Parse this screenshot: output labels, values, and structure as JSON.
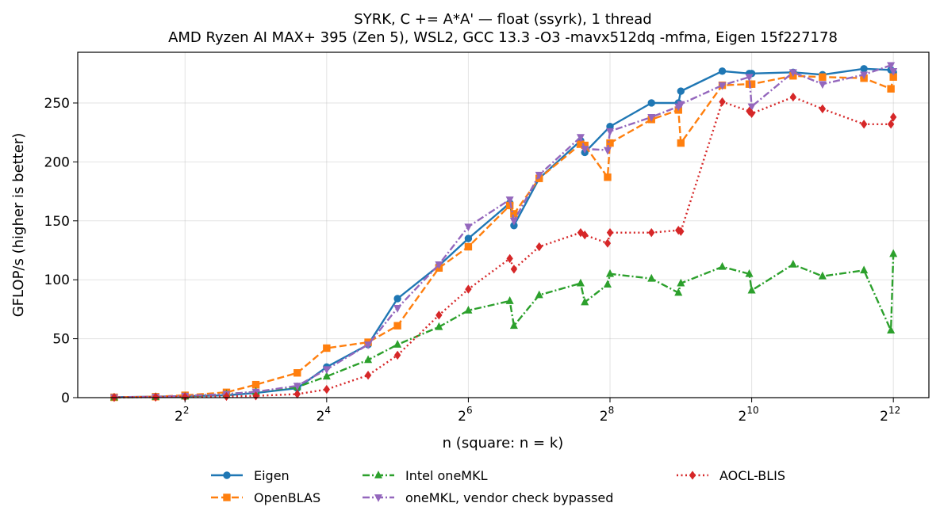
{
  "chart_data": {
    "type": "line",
    "title": "SYRK, C += A*A' — float (ssyrk), 1 thread",
    "subtitle": "AMD Ryzen AI MAX+ 395 (Zen 5), WSL2, GCC 13.3 -O3 -mavx512dq -mfma, Eigen 15f227178",
    "xlabel": "n (square: n = k)",
    "ylabel": "GFLOP/s (higher is better)",
    "xscale": "log2",
    "xlim": [
      1.4,
      5800
    ],
    "ylim": [
      0,
      293
    ],
    "x_ticks": [
      {
        "value": 4,
        "base": "2",
        "exp": "2"
      },
      {
        "value": 16,
        "base": "2",
        "exp": "4"
      },
      {
        "value": 64,
        "base": "2",
        "exp": "6"
      },
      {
        "value": 256,
        "base": "2",
        "exp": "8"
      },
      {
        "value": 1024,
        "base": "2",
        "exp": "10"
      },
      {
        "value": 4096,
        "base": "2",
        "exp": "12"
      }
    ],
    "y_ticks": [
      0,
      50,
      100,
      150,
      200,
      250
    ],
    "grid": true,
    "legend_position": "below",
    "series": [
      {
        "name": "Eigen",
        "color": "#1f77b4",
        "linestyle": "solid",
        "marker": "circle",
        "points": [
          [
            2,
            0.4
          ],
          [
            3,
            0.9
          ],
          [
            4,
            1.2
          ],
          [
            6,
            2
          ],
          [
            8,
            4
          ],
          [
            12,
            8
          ],
          [
            16,
            26
          ],
          [
            24,
            45
          ],
          [
            32,
            84
          ],
          [
            48,
            112
          ],
          [
            64,
            135
          ],
          [
            96,
            165
          ],
          [
            100,
            146
          ],
          [
            128,
            186
          ],
          [
            192,
            218
          ],
          [
            200,
            208
          ],
          [
            256,
            230
          ],
          [
            384,
            250
          ],
          [
            500,
            250
          ],
          [
            512,
            260
          ],
          [
            768,
            277
          ],
          [
            1000,
            275
          ],
          [
            1024,
            275
          ],
          [
            1536,
            276
          ],
          [
            2048,
            274
          ],
          [
            3072,
            279
          ],
          [
            4000,
            278
          ],
          [
            4096,
            276
          ]
        ]
      },
      {
        "name": "OpenBLAS",
        "color": "#ff7f0e",
        "linestyle": "dashed",
        "marker": "square",
        "points": [
          [
            2,
            0.3
          ],
          [
            3,
            0.8
          ],
          [
            4,
            2
          ],
          [
            6,
            4.5
          ],
          [
            8,
            11
          ],
          [
            12,
            21
          ],
          [
            16,
            42
          ],
          [
            24,
            47
          ],
          [
            32,
            61
          ],
          [
            48,
            110
          ],
          [
            64,
            128
          ],
          [
            96,
            163
          ],
          [
            100,
            156
          ],
          [
            128,
            186
          ],
          [
            192,
            215
          ],
          [
            200,
            214
          ],
          [
            250,
            187
          ],
          [
            256,
            216
          ],
          [
            384,
            236
          ],
          [
            500,
            244
          ],
          [
            512,
            216
          ],
          [
            768,
            265
          ],
          [
            1000,
            266
          ],
          [
            1024,
            266
          ],
          [
            1536,
            273
          ],
          [
            2048,
            272
          ],
          [
            3072,
            271
          ],
          [
            4000,
            262
          ],
          [
            4096,
            272
          ]
        ]
      },
      {
        "name": "Intel oneMKL",
        "color": "#2ca02c",
        "linestyle": "dashdot",
        "marker": "triangle-up",
        "points": [
          [
            2,
            0.2
          ],
          [
            3,
            0.6
          ],
          [
            4,
            1
          ],
          [
            6,
            3
          ],
          [
            8,
            5
          ],
          [
            12,
            9
          ],
          [
            16,
            18
          ],
          [
            24,
            32
          ],
          [
            32,
            45
          ],
          [
            48,
            60
          ],
          [
            64,
            74
          ],
          [
            96,
            82
          ],
          [
            100,
            61
          ],
          [
            128,
            87
          ],
          [
            192,
            97
          ],
          [
            200,
            81
          ],
          [
            250,
            96
          ],
          [
            256,
            105
          ],
          [
            384,
            101
          ],
          [
            500,
            89
          ],
          [
            512,
            97
          ],
          [
            768,
            111
          ],
          [
            1000,
            105
          ],
          [
            1024,
            91
          ],
          [
            1536,
            113
          ],
          [
            2048,
            103
          ],
          [
            3072,
            108
          ],
          [
            4000,
            57
          ],
          [
            4096,
            122
          ]
        ]
      },
      {
        "name": "oneMKL, vendor check bypassed",
        "color": "#9467bd",
        "linestyle": "dashdot",
        "marker": "triangle-down",
        "points": [
          [
            2,
            0.3
          ],
          [
            3,
            0.7
          ],
          [
            4,
            1.5
          ],
          [
            6,
            3
          ],
          [
            8,
            5
          ],
          [
            12,
            10
          ],
          [
            16,
            24
          ],
          [
            24,
            45
          ],
          [
            32,
            76
          ],
          [
            48,
            113
          ],
          [
            64,
            145
          ],
          [
            96,
            168
          ],
          [
            100,
            150
          ],
          [
            128,
            189
          ],
          [
            192,
            221
          ],
          [
            200,
            211
          ],
          [
            250,
            210
          ],
          [
            256,
            226
          ],
          [
            384,
            238
          ],
          [
            500,
            247
          ],
          [
            512,
            249
          ],
          [
            768,
            265
          ],
          [
            1000,
            272
          ],
          [
            1024,
            247
          ],
          [
            1536,
            276
          ],
          [
            2048,
            266
          ],
          [
            3072,
            274
          ],
          [
            4000,
            282
          ],
          [
            4096,
            277
          ]
        ]
      },
      {
        "name": "AOCL-BLIS",
        "color": "#d62728",
        "linestyle": "dotted",
        "marker": "diamond",
        "points": [
          [
            2,
            0.2
          ],
          [
            3,
            0.4
          ],
          [
            4,
            0.7
          ],
          [
            6,
            1
          ],
          [
            8,
            1.5
          ],
          [
            12,
            3
          ],
          [
            16,
            7
          ],
          [
            24,
            19
          ],
          [
            32,
            36
          ],
          [
            48,
            70
          ],
          [
            64,
            92
          ],
          [
            96,
            118
          ],
          [
            100,
            109
          ],
          [
            128,
            128
          ],
          [
            192,
            140
          ],
          [
            200,
            138
          ],
          [
            250,
            131
          ],
          [
            256,
            140
          ],
          [
            384,
            140
          ],
          [
            500,
            142
          ],
          [
            512,
            141
          ],
          [
            768,
            251
          ],
          [
            1000,
            243
          ],
          [
            1024,
            241
          ],
          [
            1536,
            255
          ],
          [
            2048,
            245
          ],
          [
            3072,
            232
          ],
          [
            4000,
            232
          ],
          [
            4096,
            238
          ]
        ]
      }
    ]
  }
}
